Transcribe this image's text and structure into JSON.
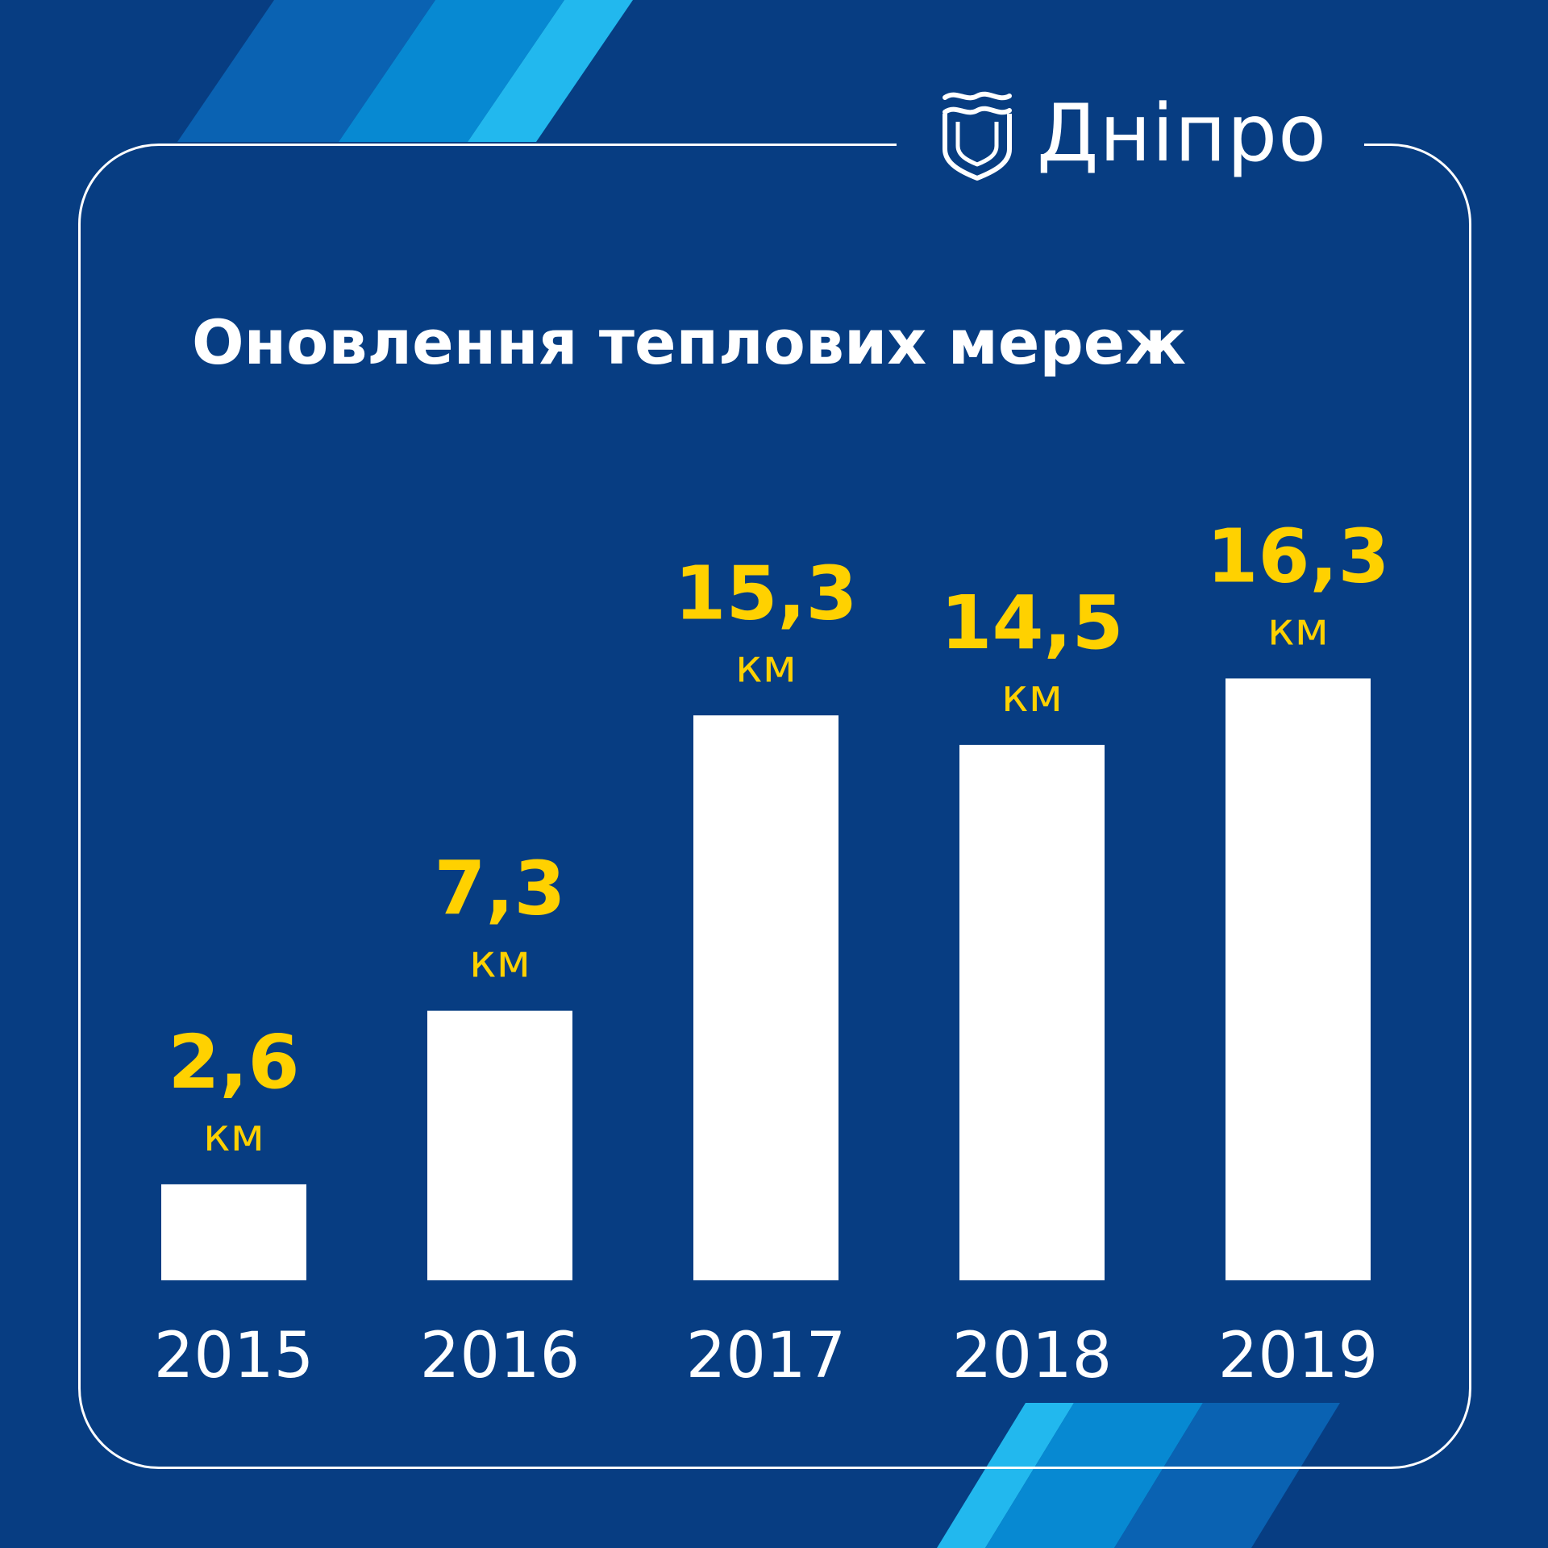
{
  "brand": {
    "name": "Дніпро"
  },
  "colors": {
    "background": "#073d82",
    "bars": "#ffffff",
    "value_labels": "#ffd100",
    "stripe_dark": "#0a62b2",
    "stripe_mid": "#0789d2",
    "stripe_light": "#22b8ee"
  },
  "icons": {
    "logo": "dnipro-shield-icon"
  },
  "chart_data": {
    "type": "bar",
    "title": "Оновлення теплових мереж",
    "categories": [
      "2015",
      "2016",
      "2017",
      "2018",
      "2019"
    ],
    "values": [
      2.6,
      7.3,
      15.3,
      14.5,
      16.3
    ],
    "value_labels": [
      "2,6",
      "7,3",
      "15,3",
      "14,5",
      "16,3"
    ],
    "unit": "км",
    "xlabel": "",
    "ylabel": "",
    "grid": false,
    "legend": "none"
  }
}
